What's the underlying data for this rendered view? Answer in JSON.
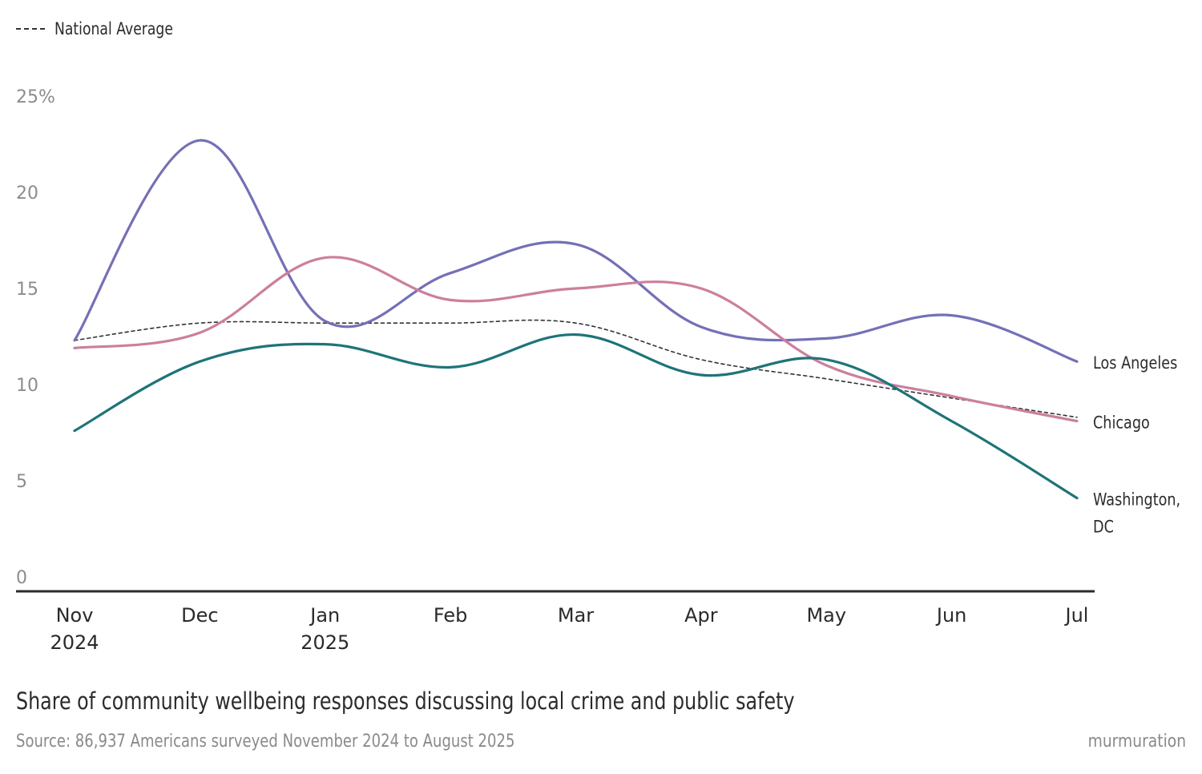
{
  "legend": {
    "items": [
      {
        "label": "National Average",
        "style": "dashed",
        "color": "#333333"
      }
    ]
  },
  "caption": {
    "title": "Share of community wellbeing responses discussing local crime and public safety",
    "source": "Source: 86,937 Americans surveyed November 2024 to August 2025",
    "brand": "murmuration"
  },
  "chart_data": {
    "type": "line",
    "x_ticks": [
      {
        "month": "Nov",
        "year": "2024"
      },
      {
        "month": "Dec",
        "year": ""
      },
      {
        "month": "Jan",
        "year": "2025"
      },
      {
        "month": "Feb",
        "year": ""
      },
      {
        "month": "Mar",
        "year": ""
      },
      {
        "month": "Apr",
        "year": ""
      },
      {
        "month": "May",
        "year": ""
      },
      {
        "month": "Jun",
        "year": ""
      },
      {
        "month": "Jul",
        "year": ""
      }
    ],
    "y_ticks": [
      "0",
      "5",
      "10",
      "15",
      "20",
      "25%"
    ],
    "ylim": [
      0,
      25
    ],
    "grid": false,
    "legend_position": "top-left",
    "series": [
      {
        "name": "Los Angeles",
        "color": "#7470b6",
        "style": "solid",
        "values": [
          12.3,
          22.7,
          13.3,
          15.8,
          17.3,
          13.0,
          12.4,
          13.6,
          11.2
        ]
      },
      {
        "name": "Chicago",
        "color": "#cc7f9d",
        "style": "solid",
        "values": [
          11.9,
          12.7,
          16.6,
          14.4,
          15.0,
          15.0,
          11.0,
          9.4,
          8.1
        ]
      },
      {
        "name": "Washington, DC",
        "label_lines": [
          "Washington,",
          "DC"
        ],
        "color": "#1e7479",
        "style": "solid",
        "values": [
          7.6,
          11.2,
          12.1,
          10.9,
          12.6,
          10.5,
          11.3,
          8.1,
          4.1
        ]
      },
      {
        "name": "National Average",
        "color": "#333333",
        "style": "dashed",
        "show_end_label": false,
        "values": [
          12.3,
          13.2,
          13.2,
          13.2,
          13.2,
          11.3,
          10.3,
          9.3,
          8.3
        ]
      }
    ]
  }
}
